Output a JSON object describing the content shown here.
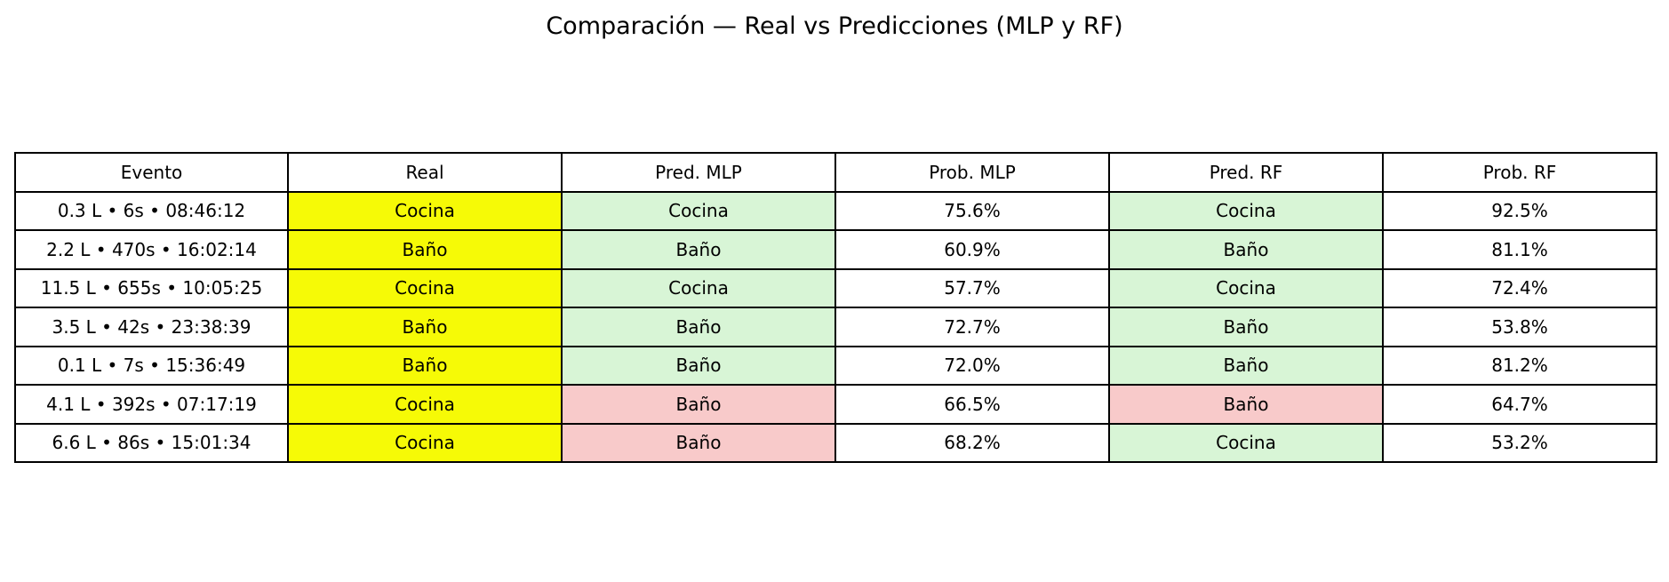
{
  "chart_data": {
    "type": "table",
    "title": "Comparación — Real vs Predicciones (MLP y RF)",
    "columns": [
      "Evento",
      "Real",
      "Pred. MLP",
      "Prob. MLP",
      "Pred. RF",
      "Prob. RF"
    ],
    "rows": [
      [
        "0.3 L • 6s • 08:46:12",
        "Cocina",
        "Cocina",
        "75.6%",
        "Cocina",
        "92.5%"
      ],
      [
        "2.2 L • 470s • 16:02:14",
        "Baño",
        "Baño",
        "60.9%",
        "Baño",
        "81.1%"
      ],
      [
        "11.5 L • 655s • 10:05:25",
        "Cocina",
        "Cocina",
        "57.7%",
        "Cocina",
        "72.4%"
      ],
      [
        "3.5 L • 42s • 23:38:39",
        "Baño",
        "Baño",
        "72.7%",
        "Baño",
        "53.8%"
      ],
      [
        "0.1 L • 7s • 15:36:49",
        "Baño",
        "Baño",
        "72.0%",
        "Baño",
        "81.2%"
      ],
      [
        "4.1 L • 392s • 07:17:19",
        "Cocina",
        "Baño",
        "66.5%",
        "Baño",
        "64.7%"
      ],
      [
        "6.6 L • 86s • 15:01:34",
        "Cocina",
        "Baño",
        "68.2%",
        "Cocina",
        "53.2%"
      ]
    ],
    "colors": {
      "real": "#f6fa06",
      "correct": "#d8f5d6",
      "incorrect": "#f8caca",
      "default": "#ffffff",
      "border": "#000000"
    }
  }
}
